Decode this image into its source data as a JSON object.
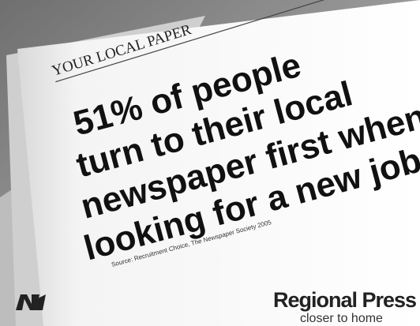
{
  "masthead": "YOUR LOCAL PAPER",
  "headline": [
    "51% of people",
    "turn to their local",
    "newspaper first when",
    "looking for a new job."
  ],
  "source": "Source: Recruitment Choice, The Newspaper Society 2005",
  "brand": {
    "name": "Regional Press",
    "tagline": "closer to home"
  }
}
